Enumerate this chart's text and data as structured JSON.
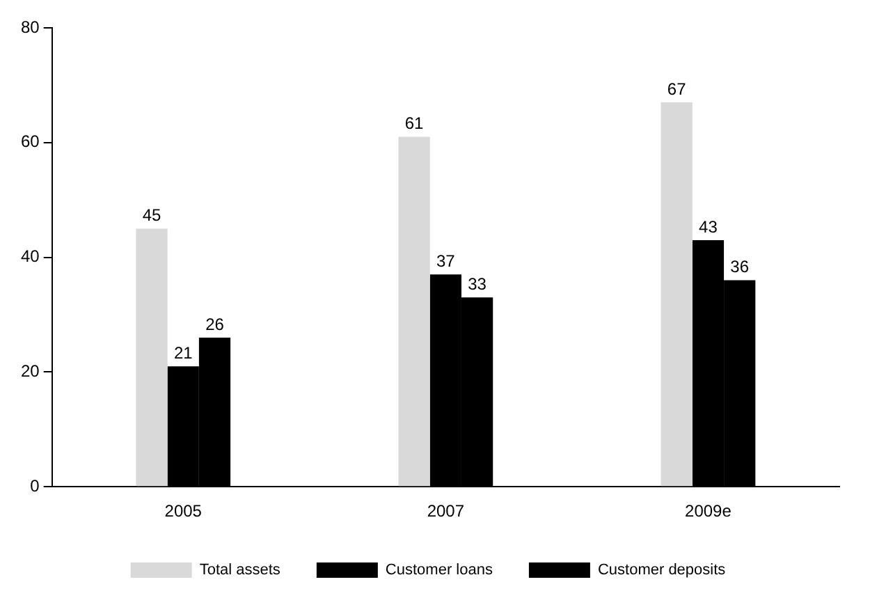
{
  "chart_data": {
    "type": "bar",
    "categories": [
      "2005",
      "2007",
      "2009e"
    ],
    "series": [
      {
        "name": "Total assets",
        "color": "#d9d9d9",
        "values": [
          45,
          61,
          67
        ]
      },
      {
        "name": "Customer loans",
        "color": "#000000",
        "values": [
          21,
          37,
          43
        ]
      },
      {
        "name": "Customer deposits",
        "color": "#000000",
        "values": [
          26,
          33,
          36
        ]
      }
    ],
    "ylim": [
      0,
      80
    ],
    "yticks": [
      0,
      20,
      40,
      60,
      80
    ],
    "grid": false,
    "legend": "bottom",
    "data_labels": true
  }
}
